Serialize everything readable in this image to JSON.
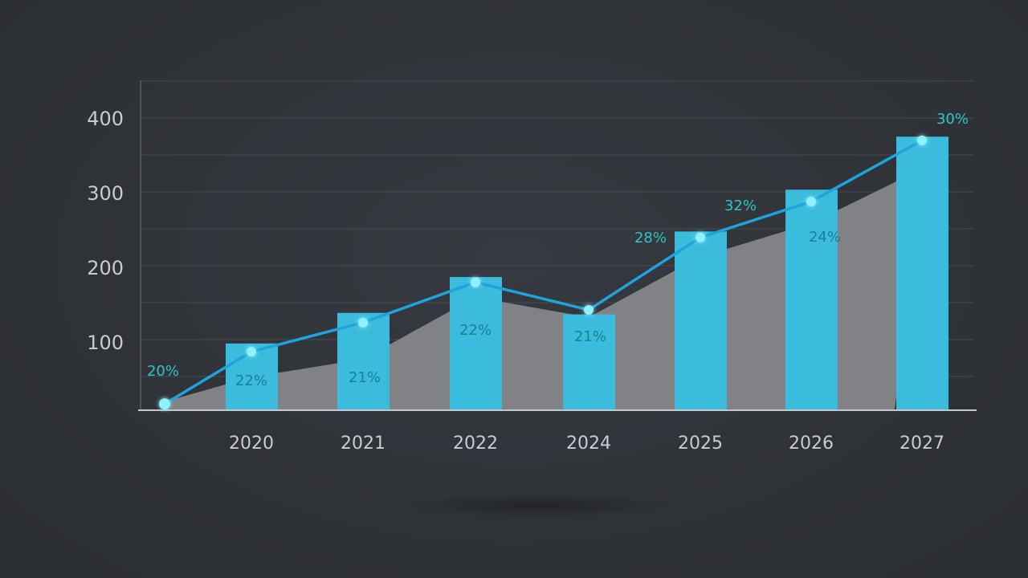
{
  "chart_data": {
    "type": "bar",
    "title": "",
    "xlabel": "",
    "ylabel": "",
    "ylim": [
      0,
      440
    ],
    "yticks": [
      100,
      200,
      300,
      400
    ],
    "grid": true,
    "categories": [
      "",
      "2020",
      "2021",
      "2022",
      "2024",
      "2025",
      "2026",
      "2027"
    ],
    "bars": [
      null,
      98,
      139,
      187,
      137,
      248,
      304,
      375
    ],
    "line": [
      17,
      87,
      126,
      180,
      143,
      240,
      288,
      370
    ],
    "area": [
      20,
      53,
      77,
      160,
      133,
      214,
      259,
      332
    ],
    "point_labels": [
      "20%",
      "22%",
      "21%",
      "22%",
      "21%",
      "28%",
      "32%",
      "30%"
    ],
    "extra_labels": [
      {
        "index": 6,
        "text": "24%"
      }
    ],
    "colors": {
      "bar": "#3bbcdc",
      "line": "#1fa3dc",
      "area": "#808285",
      "label": "#2ec4c8",
      "inner_label": "#1b7f98",
      "grid": "#474b52",
      "tick": "#c9cbd0"
    }
  }
}
